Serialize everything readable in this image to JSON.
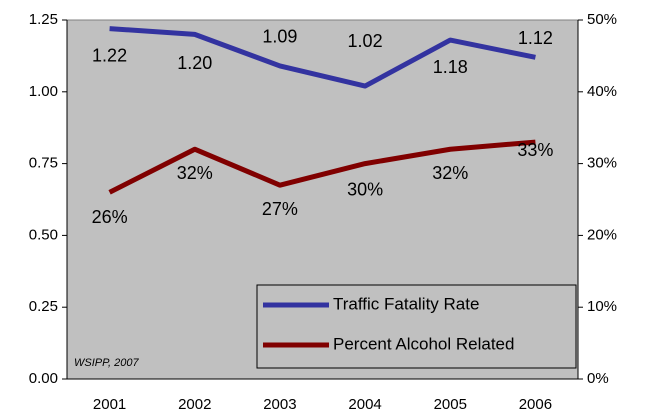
{
  "chart_data": {
    "type": "line",
    "categories": [
      "2001",
      "2002",
      "2003",
      "2004",
      "2005",
      "2006"
    ],
    "series": [
      {
        "name": "Traffic Fatality Rate",
        "color": "#3333a0",
        "values": [
          1.22,
          1.2,
          1.09,
          1.02,
          1.18,
          1.12
        ],
        "value_labels": [
          "1.22",
          "1.20",
          "1.09",
          "1.02",
          "1.18",
          "1.12"
        ]
      },
      {
        "name": "Percent Alcohol Related",
        "color": "#800000",
        "axis": "y2",
        "values": [
          26,
          32,
          27,
          30,
          32,
          33
        ],
        "value_labels": [
          "26%",
          "32%",
          "27%",
          "30%",
          "32%",
          "33%"
        ]
      }
    ],
    "ylim": [
      0,
      1.25
    ],
    "yticks": [
      {
        "value": 0,
        "label": "0.00"
      },
      {
        "value": 0.25,
        "label": "0.25"
      },
      {
        "value": 0.5,
        "label": "0.50"
      },
      {
        "value": 0.75,
        "label": "0.75"
      },
      {
        "value": 1,
        "label": "1.00"
      },
      {
        "value": 1.25,
        "label": "1.25"
      }
    ],
    "y2lim": [
      0,
      50
    ],
    "y2ticks": [
      {
        "value": 0,
        "label": "0%"
      },
      {
        "value": 10,
        "label": "10%"
      },
      {
        "value": 20,
        "label": "20%"
      },
      {
        "value": 30,
        "label": "30%"
      },
      {
        "value": 40,
        "label": "40%"
      },
      {
        "value": 50,
        "label": "50%"
      }
    ],
    "annotation": "WSIPP, 2007",
    "legend": "lower right",
    "plot_background": "#c0c0c0"
  }
}
